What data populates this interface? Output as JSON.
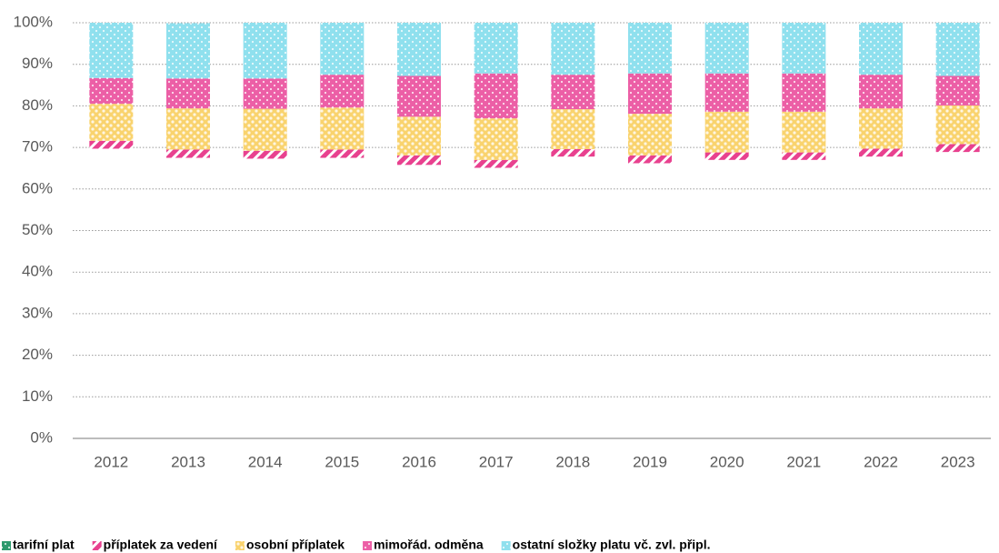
{
  "chart_data": {
    "type": "bar",
    "stacked": true,
    "categories": [
      "2012",
      "2013",
      "2014",
      "2015",
      "2016",
      "2017",
      "2018",
      "2019",
      "2020",
      "2021",
      "2022",
      "2023"
    ],
    "series": [
      {
        "name": "tarifní plat",
        "color": "#2e9a6e",
        "opacity": 0,
        "values": [
          69.7,
          67.5,
          67.3,
          67.5,
          65.8,
          65.1,
          67.8,
          66.2,
          67.0,
          67.0,
          67.8,
          68.9
        ]
      },
      {
        "name": "příplatek za vedení",
        "color": "#e8418f",
        "values": [
          1.9,
          2.0,
          1.9,
          2.0,
          2.3,
          1.9,
          1.8,
          1.9,
          1.8,
          1.8,
          1.9,
          1.9
        ]
      },
      {
        "name": "osobní příplatek",
        "color": "#f9d36e",
        "values": [
          8.9,
          9.9,
          10.1,
          10.1,
          9.3,
          10.0,
          9.6,
          10.0,
          9.8,
          9.8,
          9.7,
          9.3
        ]
      },
      {
        "name": "mimořád. odměna",
        "color": "#ec5fa6",
        "values": [
          6.2,
          7.2,
          7.3,
          7.9,
          9.8,
          10.8,
          8.3,
          9.7,
          9.2,
          9.2,
          8.1,
          7.1
        ]
      },
      {
        "name": "ostatní složky platu vč. zvl. připl.",
        "color": "#8fe0ee",
        "values": [
          13.3,
          13.3,
          13.4,
          12.5,
          12.8,
          12.2,
          12.5,
          12.2,
          12.2,
          12.2,
          12.5,
          12.8
        ]
      }
    ],
    "ylim": [
      0,
      100
    ],
    "yticks": [
      {
        "value": 0,
        "label": "0%"
      },
      {
        "value": 10,
        "label": "10%"
      },
      {
        "value": 20,
        "label": "20%"
      },
      {
        "value": 30,
        "label": "30%"
      },
      {
        "value": 40,
        "label": "40%"
      },
      {
        "value": 50,
        "label": "50%"
      },
      {
        "value": 60,
        "label": "60%"
      },
      {
        "value": 70,
        "label": "70%"
      },
      {
        "value": 80,
        "label": "80%"
      },
      {
        "value": 90,
        "label": "90%"
      },
      {
        "value": 100,
        "label": "100%"
      }
    ],
    "grid": true,
    "legend": "bottom"
  }
}
